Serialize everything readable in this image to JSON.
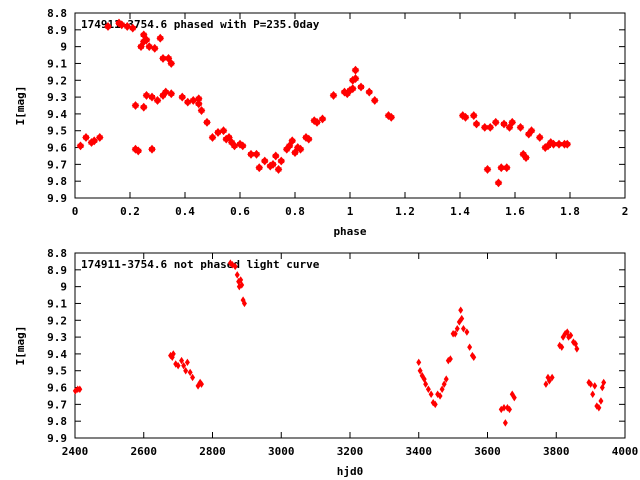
{
  "chart_data": [
    {
      "type": "scatter",
      "title": "174911-3754.6 phased with P=235.0day",
      "xlabel": "phase",
      "ylabel": "I[mag]",
      "xlim": [
        0,
        2
      ],
      "ylim": [
        9.9,
        8.8
      ],
      "y_inverted": true,
      "xticks": [
        "0",
        "0.2",
        "0.4",
        "0.6",
        "0.8",
        "1",
        "1.2",
        "1.4",
        "1.6",
        "1.8",
        "2"
      ],
      "yticks": [
        "8.8",
        "8.9",
        "9",
        "9.1",
        "9.2",
        "9.3",
        "9.4",
        "9.5",
        "9.6",
        "9.7",
        "9.8",
        "9.9"
      ],
      "marker_color": "#ff0000",
      "grid": false,
      "series": [
        {
          "points": [
            [
              0.02,
              9.59
            ],
            [
              0.04,
              9.54
            ],
            [
              0.06,
              9.57
            ],
            [
              0.07,
              9.56
            ],
            [
              0.09,
              9.54
            ],
            [
              0.12,
              8.88
            ],
            [
              0.16,
              8.86
            ],
            [
              0.17,
              8.87
            ],
            [
              0.19,
              8.88
            ],
            [
              0.21,
              8.89
            ],
            [
              0.22,
              9.35
            ],
            [
              0.22,
              9.61
            ],
            [
              0.23,
              9.62
            ],
            [
              0.24,
              9.0
            ],
            [
              0.25,
              8.93
            ],
            [
              0.25,
              8.97
            ],
            [
              0.25,
              9.36
            ],
            [
              0.26,
              9.29
            ],
            [
              0.26,
              8.96
            ],
            [
              0.27,
              9.0
            ],
            [
              0.28,
              9.3
            ],
            [
              0.28,
              9.61
            ],
            [
              0.29,
              9.01
            ],
            [
              0.3,
              9.32
            ],
            [
              0.31,
              8.95
            ],
            [
              0.32,
              9.29
            ],
            [
              0.32,
              9.07
            ],
            [
              0.33,
              9.27
            ],
            [
              0.34,
              9.07
            ],
            [
              0.35,
              9.1
            ],
            [
              0.35,
              9.28
            ],
            [
              0.39,
              9.3
            ],
            [
              0.41,
              9.33
            ],
            [
              0.43,
              9.32
            ],
            [
              0.45,
              9.34
            ],
            [
              0.45,
              9.31
            ],
            [
              0.46,
              9.38
            ],
            [
              0.48,
              9.45
            ],
            [
              0.5,
              9.54
            ],
            [
              0.52,
              9.51
            ],
            [
              0.54,
              9.5
            ],
            [
              0.55,
              9.55
            ],
            [
              0.56,
              9.54
            ],
            [
              0.57,
              9.57
            ],
            [
              0.58,
              9.59
            ],
            [
              0.6,
              9.58
            ],
            [
              0.61,
              9.59
            ],
            [
              0.64,
              9.64
            ],
            [
              0.66,
              9.64
            ],
            [
              0.67,
              9.72
            ],
            [
              0.69,
              9.68
            ],
            [
              0.71,
              9.71
            ],
            [
              0.72,
              9.7
            ],
            [
              0.73,
              9.65
            ],
            [
              0.74,
              9.73
            ],
            [
              0.75,
              9.68
            ],
            [
              0.77,
              9.61
            ],
            [
              0.78,
              9.59
            ],
            [
              0.79,
              9.56
            ],
            [
              0.8,
              9.63
            ],
            [
              0.81,
              9.6
            ],
            [
              0.82,
              9.61
            ],
            [
              0.84,
              9.54
            ],
            [
              0.85,
              9.55
            ],
            [
              0.87,
              9.44
            ],
            [
              0.88,
              9.45
            ],
            [
              0.9,
              9.43
            ],
            [
              0.94,
              9.29
            ],
            [
              0.98,
              9.27
            ],
            [
              0.99,
              9.28
            ],
            [
              1.0,
              9.26
            ],
            [
              1.01,
              9.25
            ],
            [
              1.01,
              9.2
            ],
            [
              1.02,
              9.14
            ],
            [
              1.02,
              9.19
            ],
            [
              1.04,
              9.24
            ],
            [
              1.07,
              9.27
            ],
            [
              1.09,
              9.32
            ],
            [
              1.14,
              9.41
            ],
            [
              1.15,
              9.42
            ],
            [
              1.41,
              9.41
            ],
            [
              1.42,
              9.42
            ],
            [
              1.45,
              9.41
            ],
            [
              1.46,
              9.46
            ],
            [
              1.49,
              9.48
            ],
            [
              1.5,
              9.73
            ],
            [
              1.51,
              9.48
            ],
            [
              1.53,
              9.45
            ],
            [
              1.54,
              9.81
            ],
            [
              1.55,
              9.72
            ],
            [
              1.56,
              9.46
            ],
            [
              1.57,
              9.72
            ],
            [
              1.58,
              9.48
            ],
            [
              1.59,
              9.45
            ],
            [
              1.62,
              9.48
            ],
            [
              1.63,
              9.64
            ],
            [
              1.64,
              9.66
            ],
            [
              1.65,
              9.52
            ],
            [
              1.66,
              9.5
            ],
            [
              1.69,
              9.54
            ],
            [
              1.71,
              9.6
            ],
            [
              1.72,
              9.59
            ],
            [
              1.73,
              9.57
            ],
            [
              1.74,
              9.58
            ],
            [
              1.76,
              9.58
            ],
            [
              1.78,
              9.58
            ],
            [
              1.79,
              9.58
            ]
          ]
        }
      ]
    },
    {
      "type": "scatter",
      "title": "174911-3754.6 not phased light curve",
      "xlabel": "hjd0",
      "ylabel": "I[mag]",
      "xlim": [
        2400,
        4000
      ],
      "ylim": [
        9.9,
        8.8
      ],
      "y_inverted": true,
      "xticks": [
        "2400",
        "2600",
        "2800",
        "3000",
        "3200",
        "3400",
        "3600",
        "3800",
        "4000"
      ],
      "yticks": [
        "8.8",
        "8.9",
        "9",
        "9.1",
        "9.2",
        "9.3",
        "9.4",
        "9.5",
        "9.6",
        "9.7",
        "9.8",
        "9.9"
      ],
      "marker_color": "#ff0000",
      "grid": false,
      "series": [
        {
          "points": [
            [
              2401,
              9.62
            ],
            [
              2408,
              9.61
            ],
            [
              2414,
              9.61
            ],
            [
              2678,
              9.41
            ],
            [
              2683,
              9.42
            ],
            [
              2686,
              9.4
            ],
            [
              2693,
              9.46
            ],
            [
              2700,
              9.47
            ],
            [
              2710,
              9.44
            ],
            [
              2716,
              9.47
            ],
            [
              2722,
              9.5
            ],
            [
              2727,
              9.45
            ],
            [
              2735,
              9.51
            ],
            [
              2742,
              9.54
            ],
            [
              2758,
              9.59
            ],
            [
              2764,
              9.57
            ],
            [
              2768,
              9.58
            ],
            [
              2852,
              8.86
            ],
            [
              2858,
              8.87
            ],
            [
              2866,
              8.88
            ],
            [
              2872,
              8.93
            ],
            [
              2876,
              8.97
            ],
            [
              2878,
              9.0
            ],
            [
              2882,
              8.96
            ],
            [
              2885,
              8.99
            ],
            [
              2889,
              9.08
            ],
            [
              2893,
              9.1
            ],
            [
              3400,
              9.45
            ],
            [
              3404,
              9.5
            ],
            [
              3410,
              9.53
            ],
            [
              3416,
              9.55
            ],
            [
              3420,
              9.58
            ],
            [
              3428,
              9.61
            ],
            [
              3436,
              9.64
            ],
            [
              3442,
              9.69
            ],
            [
              3448,
              9.7
            ],
            [
              3455,
              9.64
            ],
            [
              3462,
              9.65
            ],
            [
              3468,
              9.61
            ],
            [
              3474,
              9.58
            ],
            [
              3480,
              9.55
            ],
            [
              3486,
              9.44
            ],
            [
              3492,
              9.43
            ],
            [
              3500,
              9.28
            ],
            [
              3506,
              9.28
            ],
            [
              3512,
              9.25
            ],
            [
              3518,
              9.21
            ],
            [
              3522,
              9.14
            ],
            [
              3525,
              9.19
            ],
            [
              3530,
              9.25
            ],
            [
              3540,
              9.27
            ],
            [
              3548,
              9.36
            ],
            [
              3556,
              9.41
            ],
            [
              3560,
              9.42
            ],
            [
              3640,
              9.73
            ],
            [
              3648,
              9.72
            ],
            [
              3652,
              9.81
            ],
            [
              3658,
              9.72
            ],
            [
              3664,
              9.73
            ],
            [
              3672,
              9.64
            ],
            [
              3678,
              9.66
            ],
            [
              3770,
              9.58
            ],
            [
              3776,
              9.54
            ],
            [
              3780,
              9.56
            ],
            [
              3788,
              9.54
            ],
            [
              3810,
              9.35
            ],
            [
              3816,
              9.36
            ],
            [
              3820,
              9.3
            ],
            [
              3826,
              9.28
            ],
            [
              3832,
              9.27
            ],
            [
              3836,
              9.3
            ],
            [
              3842,
              9.29
            ],
            [
              3850,
              9.33
            ],
            [
              3856,
              9.34
            ],
            [
              3860,
              9.37
            ],
            [
              3895,
              9.57
            ],
            [
              3900,
              9.58
            ],
            [
              3906,
              9.64
            ],
            [
              3912,
              9.59
            ],
            [
              3918,
              9.71
            ],
            [
              3924,
              9.72
            ],
            [
              3930,
              9.68
            ],
            [
              3934,
              9.6
            ],
            [
              3938,
              9.57
            ]
          ]
        }
      ]
    }
  ]
}
